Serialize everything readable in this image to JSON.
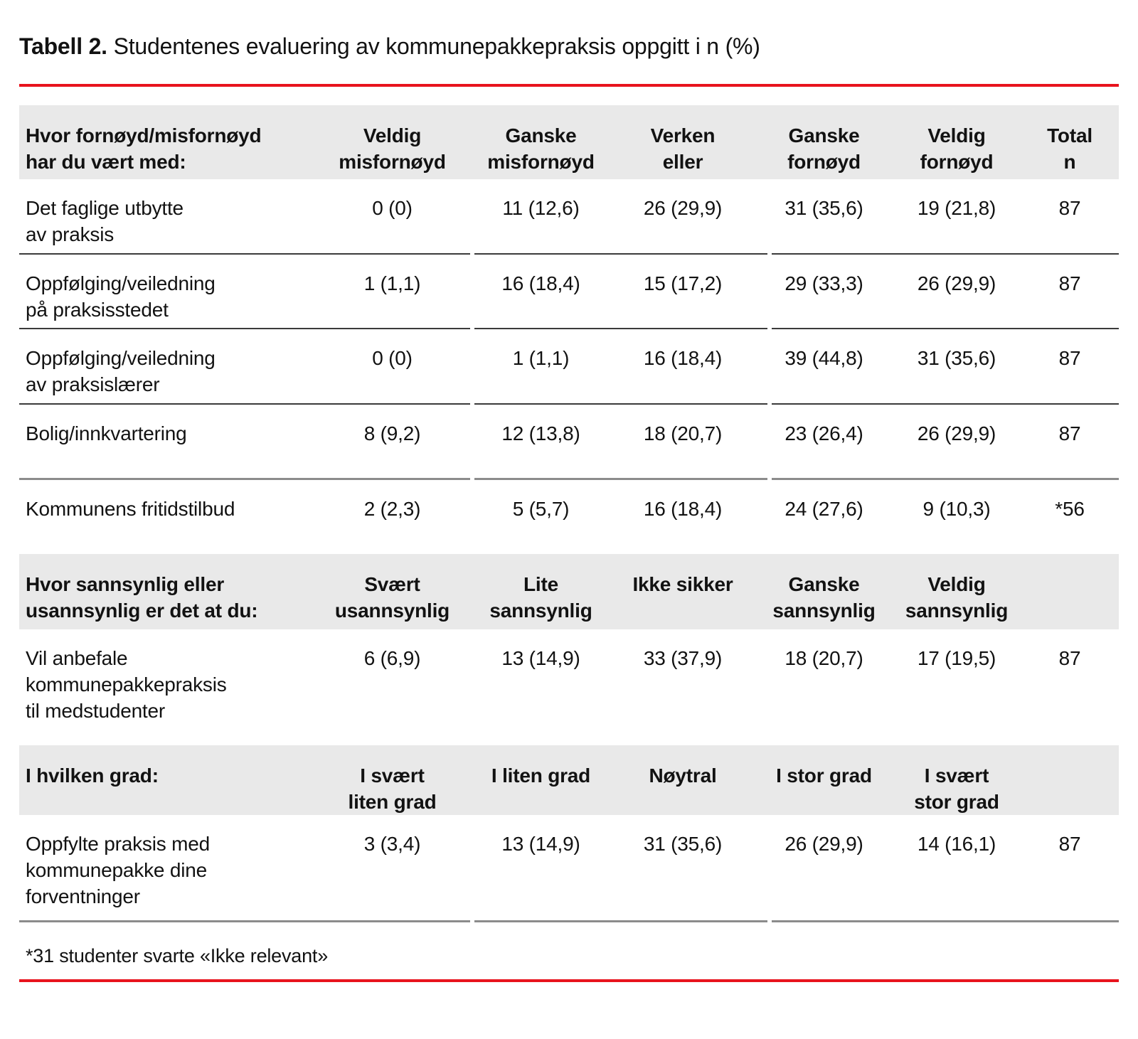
{
  "title": {
    "prefix": "Tabell 2.",
    "text": " Studentenes evaluering av kommunepakkepraksis oppgitt i n (%)"
  },
  "colors": {
    "accent_red": "#e8131d",
    "header_bg": "#e9e9e9",
    "rule_dark": "#3b3b3b",
    "rule_gray": "#8b8b8b",
    "text": "#121212"
  },
  "table": {
    "sections": [
      {
        "header": {
          "cells": [
            "Hvor fornøyd/misfornøyd\nhar du vært med:",
            "Veldig\nmisfornøyd",
            "Ganske\nmisfornøyd",
            "Verken\neller",
            "Ganske\nfornøyd",
            "Veldig\nfornøyd",
            "Total\nn"
          ]
        },
        "rows": [
          {
            "cells": [
              "Det faglige utbytte\nav praksis",
              "0 (0)",
              "11 (12,6)",
              "26 (29,9)",
              "31 (35,6)",
              "19 (21,8)",
              "87"
            ]
          },
          {
            "cells": [
              "Oppfølging/veiledning\npå praksisstedet",
              "1 (1,1)",
              "16 (18,4)",
              "15 (17,2)",
              "29 (33,3)",
              "26 (29,9)",
              "87"
            ]
          },
          {
            "cells": [
              "Oppfølging/veiledning\nav praksislærer",
              "0 (0)",
              "1 (1,1)",
              "16 (18,4)",
              "39 (44,8)",
              "31 (35,6)",
              "87"
            ]
          },
          {
            "cells": [
              "Bolig/innkvartering",
              "8 (9,2)",
              "12 (13,8)",
              "18 (20,7)",
              "23 (26,4)",
              "26 (29,9)",
              "87"
            ]
          },
          {
            "cells": [
              "Kommunens fritidstilbud",
              "2 (2,3)",
              "5 (5,7)",
              "16 (18,4)",
              "24 (27,6)",
              "9 (10,3)",
              "*56"
            ]
          }
        ]
      },
      {
        "header": {
          "cells": [
            "Hvor sannsynlig eller\nusannsynlig er det at du:",
            "Svært\nusannsynlig",
            "Lite\nsannsynlig",
            "Ikke sikker",
            "Ganske\nsannsynlig",
            "Veldig\nsannsynlig",
            ""
          ]
        },
        "rows": [
          {
            "cells": [
              "Vil anbefale\nkommunepakkepraksis\ntil medstudenter",
              "6 (6,9)",
              "13 (14,9)",
              "33 (37,9)",
              "18 (20,7)",
              "17 (19,5)",
              "87"
            ]
          }
        ]
      },
      {
        "header": {
          "cells": [
            "I hvilken grad:",
            "I svært\nliten grad",
            "I liten grad",
            "Nøytral",
            "I stor grad",
            "I svært\nstor grad",
            ""
          ]
        },
        "rows": [
          {
            "cells": [
              "Oppfylte praksis med\nkommunepakke dine\nforventninger",
              "3 (3,4)",
              "13 (14,9)",
              "31 (35,6)",
              "26 (29,9)",
              "14 (16,1)",
              "87"
            ]
          }
        ]
      }
    ]
  },
  "footnote": "*31 studenter svarte «Ikke relevant»"
}
